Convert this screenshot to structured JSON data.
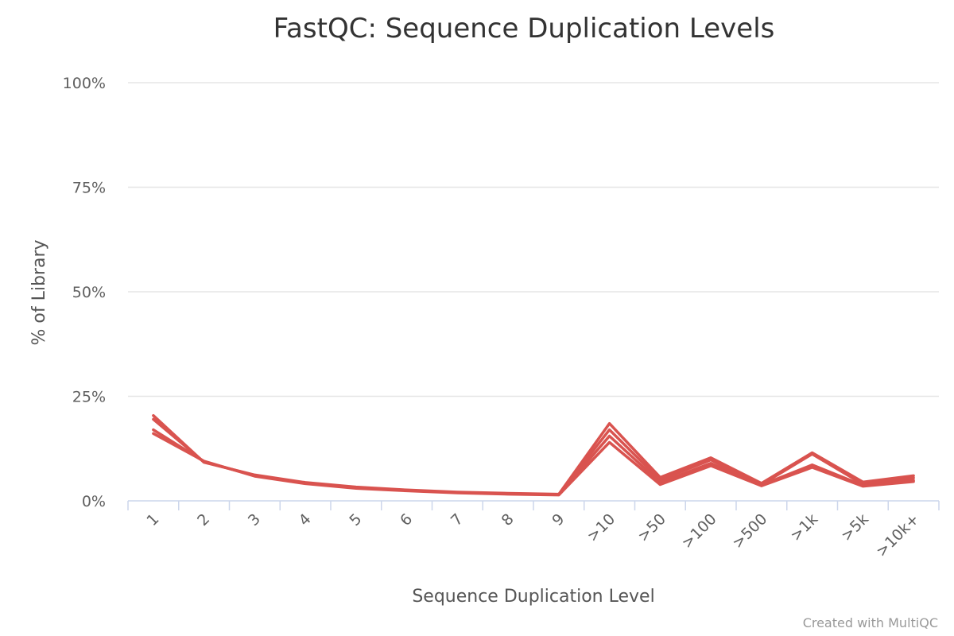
{
  "credit": "Created with MultiQC",
  "chart_data": {
    "type": "line",
    "title": "FastQC: Sequence Duplication Levels",
    "xlabel": "Sequence Duplication Level",
    "ylabel": "% of Library",
    "ylim": [
      0,
      100
    ],
    "yticks": [
      0,
      25,
      50,
      75,
      100
    ],
    "ytick_labels": [
      "0%",
      "25%",
      "50%",
      "75%",
      "100%"
    ],
    "categories": [
      "1",
      "2",
      "3",
      "4",
      "5",
      "6",
      "7",
      "8",
      "9",
      ">10",
      ">50",
      ">100",
      ">500",
      ">1k",
      ">5k",
      ">10k+"
    ],
    "color": "#d9534f",
    "grid": true,
    "legend": "none",
    "series": [
      {
        "values": [
          20.4,
          9.2,
          6.2,
          4.4,
          3.3,
          2.6,
          2.1,
          1.8,
          1.6,
          18.5,
          5.6,
          10.3,
          4.2,
          11.5,
          4.5,
          6.0
        ]
      },
      {
        "values": [
          19.5,
          9.3,
          6.1,
          4.3,
          3.2,
          2.5,
          2.0,
          1.7,
          1.5,
          17.0,
          5.0,
          9.8,
          3.9,
          11.2,
          4.0,
          5.5
        ]
      },
      {
        "values": [
          17.0,
          9.4,
          6.0,
          4.2,
          3.1,
          2.5,
          2.0,
          1.7,
          1.5,
          15.5,
          4.4,
          9.0,
          3.8,
          8.6,
          3.7,
          4.9
        ]
      },
      {
        "values": [
          16.1,
          9.5,
          5.9,
          4.1,
          3.0,
          2.4,
          1.9,
          1.6,
          1.4,
          14.0,
          3.9,
          8.4,
          3.6,
          8.0,
          3.5,
          4.6
        ]
      }
    ]
  }
}
